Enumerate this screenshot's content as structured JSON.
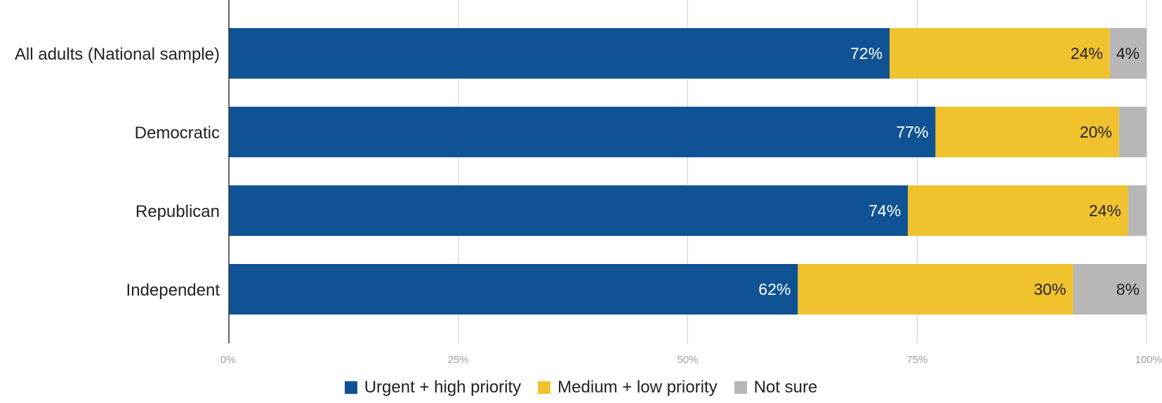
{
  "chart_data": {
    "type": "bar",
    "orientation": "horizontal",
    "stacked": true,
    "categories": [
      "All adults (National sample)",
      "Democratic",
      "Republican",
      "Independent"
    ],
    "series": [
      {
        "name": "Urgent + high priority",
        "color": "#0f5394",
        "values": [
          72,
          77,
          74,
          62
        ],
        "labels": [
          "72%",
          "77%",
          "74%",
          "62%"
        ]
      },
      {
        "name": "Medium + low priority",
        "color": "#f0c22e",
        "values": [
          24,
          20,
          24,
          30
        ],
        "labels": [
          "24%",
          "20%",
          "24%",
          "30%"
        ]
      },
      {
        "name": "Not sure",
        "color": "#b7b7b7",
        "values": [
          4,
          3,
          2,
          8
        ],
        "labels": [
          "4%",
          "",
          "",
          "8%"
        ]
      }
    ],
    "xlim": [
      0,
      100
    ],
    "xticks": [
      0,
      25,
      50,
      75,
      100
    ],
    "xtick_labels": [
      "0%",
      "25%",
      "50%",
      "75%",
      "100%"
    ],
    "grid": true,
    "legend_position": "bottom"
  }
}
